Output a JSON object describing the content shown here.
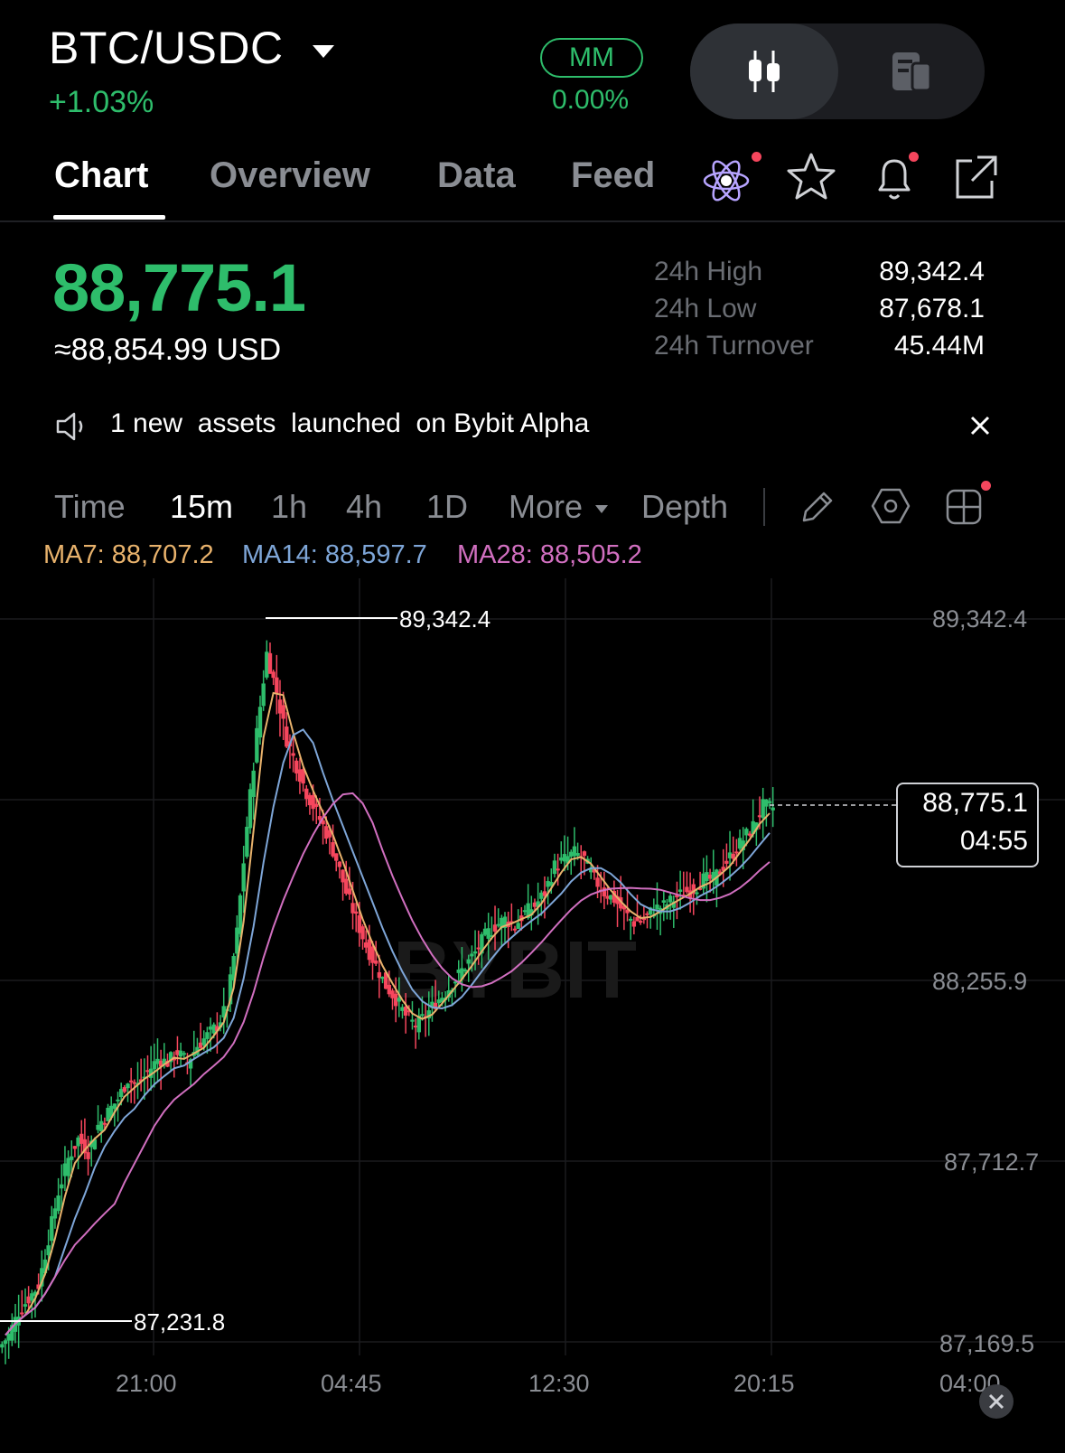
{
  "header": {
    "pair": "BTC/USDC",
    "change": "+1.03%",
    "mm_label": "MM",
    "mm_value": "0.00%"
  },
  "tabs": [
    {
      "label": "Chart"
    },
    {
      "label": "Overview"
    },
    {
      "label": "Data"
    },
    {
      "label": "Feed"
    }
  ],
  "icons": [
    "view-toggle-candles-icon",
    "view-toggle-book-icon",
    "ai-atom-icon",
    "star-icon",
    "bell-icon",
    "share-icon",
    "speaker-icon",
    "close-icon",
    "pencil-icon",
    "settings-hex-icon",
    "grid-layout-icon"
  ],
  "price": {
    "last": "88,775.1",
    "usd": "≈88,854.99 USD"
  },
  "stats": [
    {
      "label": "24h High",
      "value": "89,342.4"
    },
    {
      "label": "24h Low",
      "value": "87,678.1"
    },
    {
      "label": "24h Turnover",
      "value": "45.44M"
    }
  ],
  "notice": {
    "text": "1 new  assets  launched  on Bybit Alpha"
  },
  "timeframes": [
    {
      "label": "Time"
    },
    {
      "label": "15m"
    },
    {
      "label": "1h"
    },
    {
      "label": "4h"
    },
    {
      "label": "1D"
    },
    {
      "label": "More"
    },
    {
      "label": "Depth"
    }
  ],
  "ma": {
    "ma7": "MA7: 88,707.2",
    "ma14": "MA14: 88,597.7",
    "ma28": "MA28: 88,505.2",
    "colors": {
      "ma7": "#e8b26c",
      "ma14": "#7ea6d8",
      "ma28": "#d16fc0"
    }
  },
  "colors": {
    "up": "#2ebd6b",
    "down": "#f6465d"
  },
  "chart_data": {
    "type": "candlestick",
    "y_ticks": [
      "89,342.4",
      "88,255.9",
      "87,712.7",
      "87,169.5"
    ],
    "x_ticks": [
      "21:00",
      "04:45",
      "12:30",
      "20:15",
      "04:00"
    ],
    "ylim": [
      86900,
      89500
    ],
    "high_marker": "89,342.4",
    "low_marker": "87,231.8",
    "last_price": "88,775.1",
    "countdown": "04:55",
    "watermark": "BYBIT",
    "close_series": [
      87190,
      87260,
      87300,
      87340,
      87480,
      87620,
      87720,
      87780,
      87740,
      87820,
      87860,
      87900,
      87960,
      87940,
      87980,
      88020,
      88010,
      88040,
      88010,
      88060,
      88090,
      88120,
      88180,
      88400,
      88720,
      89000,
      89240,
      89120,
      88980,
      88900,
      88820,
      88760,
      88700,
      88620,
      88520,
      88440,
      88360,
      88300,
      88240,
      88200,
      88150,
      88120,
      88150,
      88190,
      88220,
      88260,
      88300,
      88340,
      88390,
      88420,
      88440,
      88420,
      88460,
      88480,
      88520,
      88600,
      88620,
      88640,
      88620,
      88560,
      88520,
      88500,
      88460,
      88430,
      88440,
      88470,
      88480,
      88500,
      88520,
      88530,
      88560,
      88560,
      88600,
      88640,
      88680,
      88720,
      88780,
      88775
    ]
  }
}
